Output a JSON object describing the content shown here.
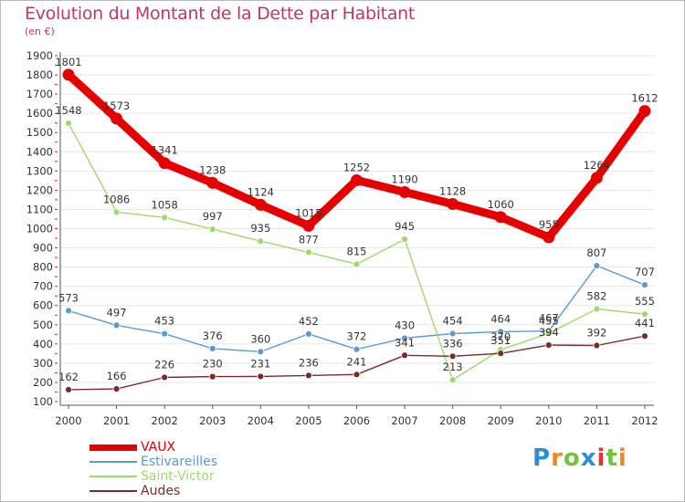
{
  "title": "Evolution du Montant de la Dette par Habitant",
  "subtitle": "(en €)",
  "logo_text": "Proxiti",
  "colors": {
    "title": "#c0356b",
    "axis": "#555555",
    "grid": "#e6e6e6",
    "tick_marks": "#d02050",
    "logo": [
      "#2a8fd8",
      "#f08a1c",
      "#74c23a",
      "#2a8fd8",
      "#e0342b",
      "#74c23a",
      "#f08a1c"
    ]
  },
  "chart_data": {
    "type": "line",
    "x": [
      "2000",
      "2001",
      "2002",
      "2003",
      "2004",
      "2005",
      "2006",
      "2007",
      "2008",
      "2009",
      "2010",
      "2011",
      "2012"
    ],
    "ylim": [
      100,
      1900
    ],
    "yticks": [
      100,
      200,
      300,
      400,
      500,
      600,
      700,
      800,
      900,
      1000,
      1100,
      1200,
      1300,
      1400,
      1500,
      1600,
      1700,
      1800,
      1900
    ],
    "grid": "horizontal",
    "legend_position": "bottom-left",
    "series": [
      {
        "name": "VAUX",
        "color": "#e60000",
        "width": 9,
        "values": [
          1801,
          1573,
          1341,
          1238,
          1124,
          1015,
          1252,
          1190,
          1128,
          1060,
          955,
          1264,
          1612
        ],
        "labels": [
          "1801",
          "1573",
          "1341",
          "1238",
          "1124",
          "1015",
          "1252",
          "1190",
          "1128",
          "1060",
          "955",
          "1264",
          "1612"
        ]
      },
      {
        "name": "Estivareilles",
        "color": "#5b9ad0",
        "width": 1.4,
        "values": [
          573,
          497,
          453,
          376,
          360,
          452,
          372,
          430,
          454,
          464,
          467,
          807,
          707
        ],
        "labels": [
          "573",
          "497",
          "453",
          "376",
          "360",
          "452",
          "372",
          "430",
          "454",
          "464",
          "467",
          "807",
          "707"
        ]
      },
      {
        "name": "Saint-Victor",
        "color": "#9ed96a",
        "width": 1.4,
        "values": [
          1548,
          1086,
          1058,
          997,
          935,
          877,
          815,
          945,
          213,
          370,
          455,
          582,
          555
        ],
        "labels": [
          "1548",
          "1086",
          "1058",
          "997",
          "935",
          "877",
          "815",
          "945",
          "213",
          "370",
          "455",
          "582",
          "555"
        ]
      },
      {
        "name": "Audes",
        "color": "#7a2a2a",
        "width": 1.4,
        "values": [
          162,
          166,
          226,
          230,
          231,
          236,
          241,
          341,
          336,
          351,
          394,
          392,
          441
        ],
        "labels": [
          "162",
          "166",
          "226",
          "230",
          "231",
          "236",
          "241",
          "341",
          "336",
          "351",
          "394",
          "392",
          "441"
        ]
      }
    ]
  }
}
